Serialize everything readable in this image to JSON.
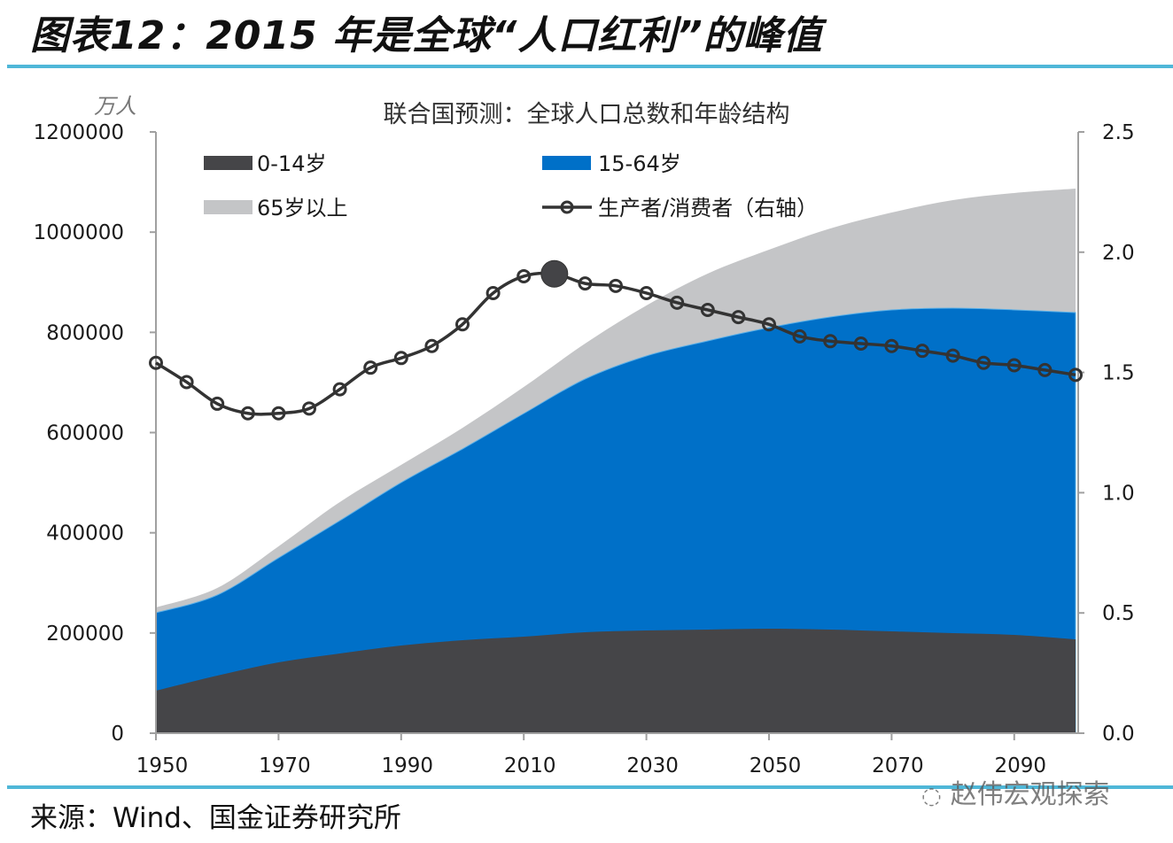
{
  "figure": {
    "title": "图表12：2015 年是全球“人口红利”的峰值",
    "source": "来源：Wind、国金证券研究所",
    "watermark": "赵伟宏观探索",
    "watermark_icon": "wechat-icon"
  },
  "colors": {
    "age_0_14": "#454548",
    "age_15_64": "#0070c8",
    "age_65_plus": "#c4c5c7",
    "ratio_line": "#333333",
    "rule": "#4fb7d8"
  },
  "chart_data": {
    "type": "area",
    "title": "联合国预测：全球人口总数和年龄结构",
    "ylabel": "万人",
    "y2label": "",
    "xlabel": "",
    "ylim": [
      0,
      1200000
    ],
    "y2lim": [
      0,
      2.5
    ],
    "xlim": [
      1950,
      2100
    ],
    "xticks": [
      "1950",
      "1970",
      "1990",
      "2010",
      "2030",
      "2050",
      "2070",
      "2090"
    ],
    "yticks": [
      "0",
      "200000",
      "400000",
      "600000",
      "800000",
      "1000000",
      "1200000"
    ],
    "y2ticks": [
      "0.0",
      "0.5",
      "1.0",
      "1.5",
      "2.0",
      "2.5"
    ],
    "grid": false,
    "legend_position": "top",
    "stacked": true,
    "x": [
      1950,
      1960,
      1970,
      1980,
      1990,
      2000,
      2010,
      2020,
      2030,
      2040,
      2050,
      2060,
      2070,
      2080,
      2090,
      2100
    ],
    "series": [
      {
        "name": "0-14岁",
        "type": "area",
        "axis": "left",
        "values": [
          84800,
          114900,
          141400,
          159100,
          175000,
          185600,
          192600,
          201500,
          205000,
          206800,
          208500,
          206800,
          203200,
          199700,
          196200,
          187300
        ]
      },
      {
        "name": "15-64岁",
        "type": "area",
        "axis": "left",
        "values": [
          155500,
          160800,
          208500,
          265100,
          325200,
          381700,
          445400,
          505400,
          547900,
          576100,
          600900,
          623800,
          641500,
          648600,
          648600,
          652100
        ]
      },
      {
        "name": "65岁以上",
        "type": "area",
        "axis": "left",
        "values": [
          10600,
          14100,
          23000,
          37100,
          35300,
          42000,
          53000,
          70700,
          100700,
          134300,
          155500,
          176700,
          194400,
          215600,
          233300,
          247400
        ]
      }
    ],
    "line_series": {
      "name": "生产者/消费者（右轴）",
      "type": "line",
      "axis": "right",
      "x": [
        1950,
        1955,
        1960,
        1965,
        1970,
        1975,
        1980,
        1985,
        1990,
        1995,
        2000,
        2005,
        2010,
        2015,
        2020,
        2025,
        2030,
        2035,
        2040,
        2045,
        2050,
        2055,
        2060,
        2065,
        2070,
        2075,
        2080,
        2085,
        2090,
        2095,
        2100
      ],
      "values": [
        1.54,
        1.46,
        1.37,
        1.33,
        1.33,
        1.35,
        1.43,
        1.52,
        1.56,
        1.61,
        1.7,
        1.83,
        1.9,
        1.91,
        1.87,
        1.86,
        1.83,
        1.79,
        1.76,
        1.73,
        1.7,
        1.65,
        1.63,
        1.62,
        1.61,
        1.59,
        1.57,
        1.54,
        1.53,
        1.51,
        1.49
      ],
      "highlight": {
        "x": 2015,
        "value": 1.91,
        "annotation": "peak"
      }
    },
    "legend": [
      "0-14岁",
      "15-64岁",
      "65岁以上",
      "生产者/消费者（右轴）"
    ]
  }
}
